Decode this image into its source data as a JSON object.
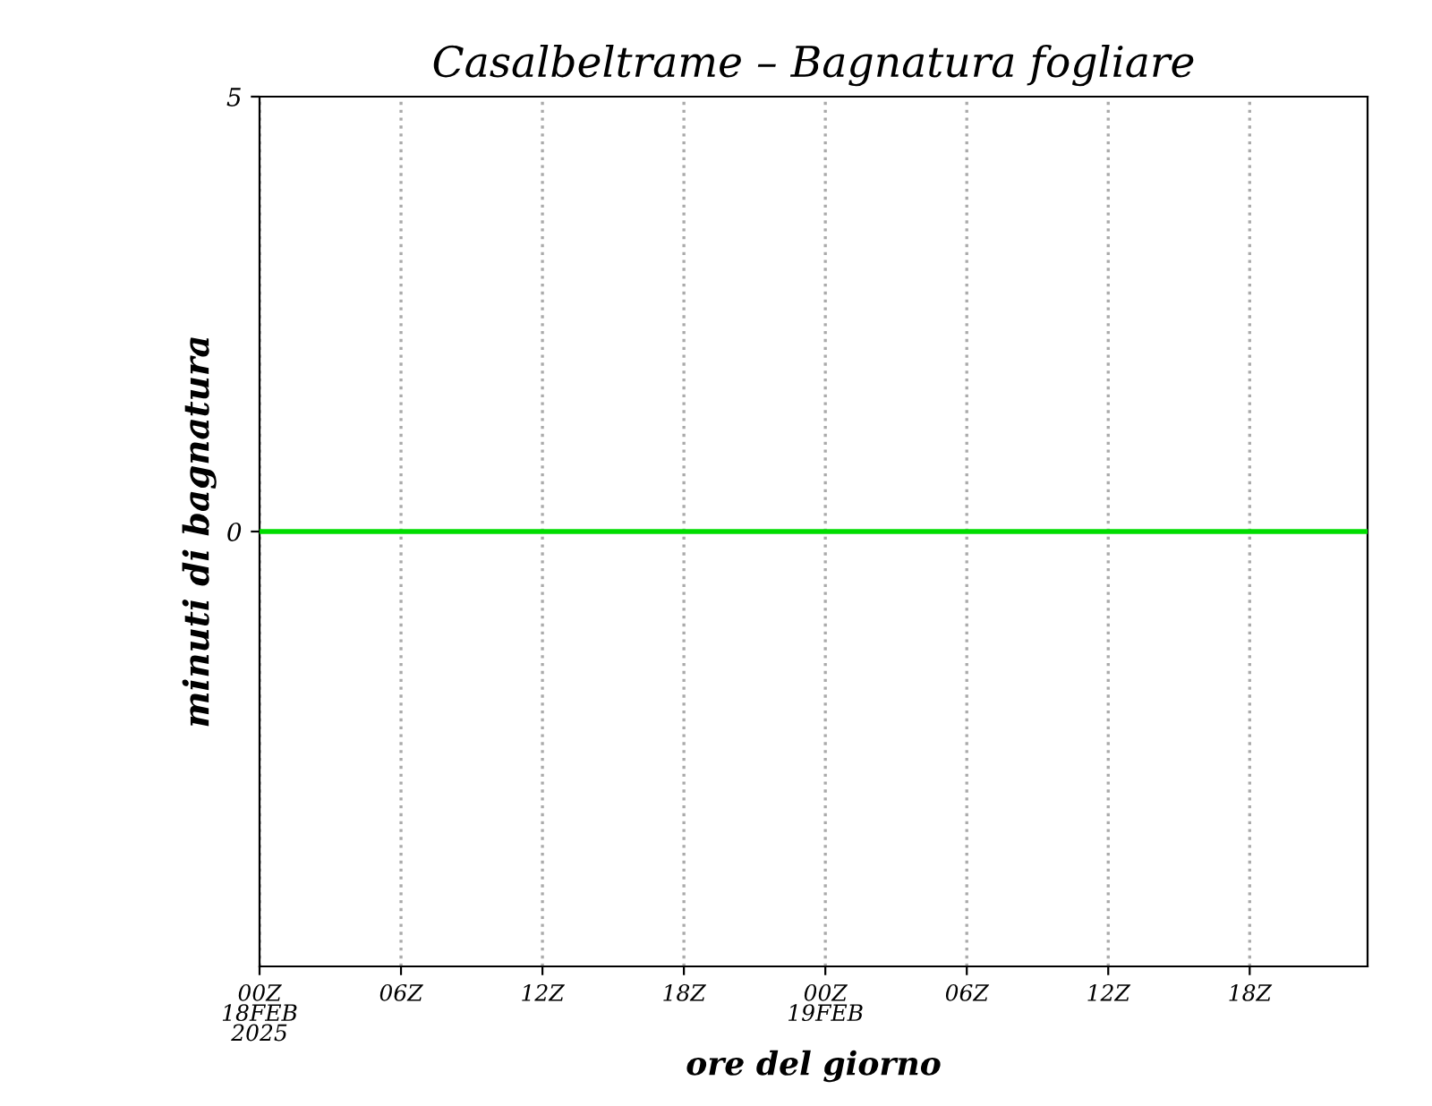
{
  "chart_data": {
    "type": "line",
    "title": "Casalbeltrame – Bagnatura fogliare",
    "xlabel": "ore del giorno",
    "ylabel": "minuti di bagnatura",
    "x": [
      "2025-02-18T00:00",
      "2025-02-18T03:00",
      "2025-02-18T06:00",
      "2025-02-18T09:00",
      "2025-02-18T12:00",
      "2025-02-18T15:00",
      "2025-02-18T18:00",
      "2025-02-18T21:00",
      "2025-02-19T00:00",
      "2025-02-19T03:00",
      "2025-02-19T06:00",
      "2025-02-19T09:00",
      "2025-02-19T12:00",
      "2025-02-19T15:00",
      "2025-02-19T18:00",
      "2025-02-19T21:00",
      "2025-02-19T23:00"
    ],
    "series": [
      {
        "color": "#00dd00",
        "values": [
          0,
          0,
          0,
          0,
          0,
          0,
          0,
          0,
          0,
          0,
          0,
          0,
          0,
          0,
          0,
          0,
          0
        ]
      }
    ],
    "xlim": [
      "2025-02-18T00:00",
      "2025-02-19T23:00"
    ],
    "xticks": [
      {
        "value": "2025-02-18T00:00",
        "label": "00Z\n18FEB\n2025"
      },
      {
        "value": "2025-02-18T06:00",
        "label": "06Z"
      },
      {
        "value": "2025-02-18T12:00",
        "label": "12Z"
      },
      {
        "value": "2025-02-18T18:00",
        "label": "18Z"
      },
      {
        "value": "2025-02-19T00:00",
        "label": "00Z\n19FEB"
      },
      {
        "value": "2025-02-19T06:00",
        "label": "06Z"
      },
      {
        "value": "2025-02-19T12:00",
        "label": "12Z"
      },
      {
        "value": "2025-02-19T18:00",
        "label": "18Z"
      }
    ],
    "ylim": [
      -5,
      5
    ],
    "yticks": [
      0,
      5
    ],
    "grid": "x",
    "line_style": "solid",
    "marker": "none"
  }
}
